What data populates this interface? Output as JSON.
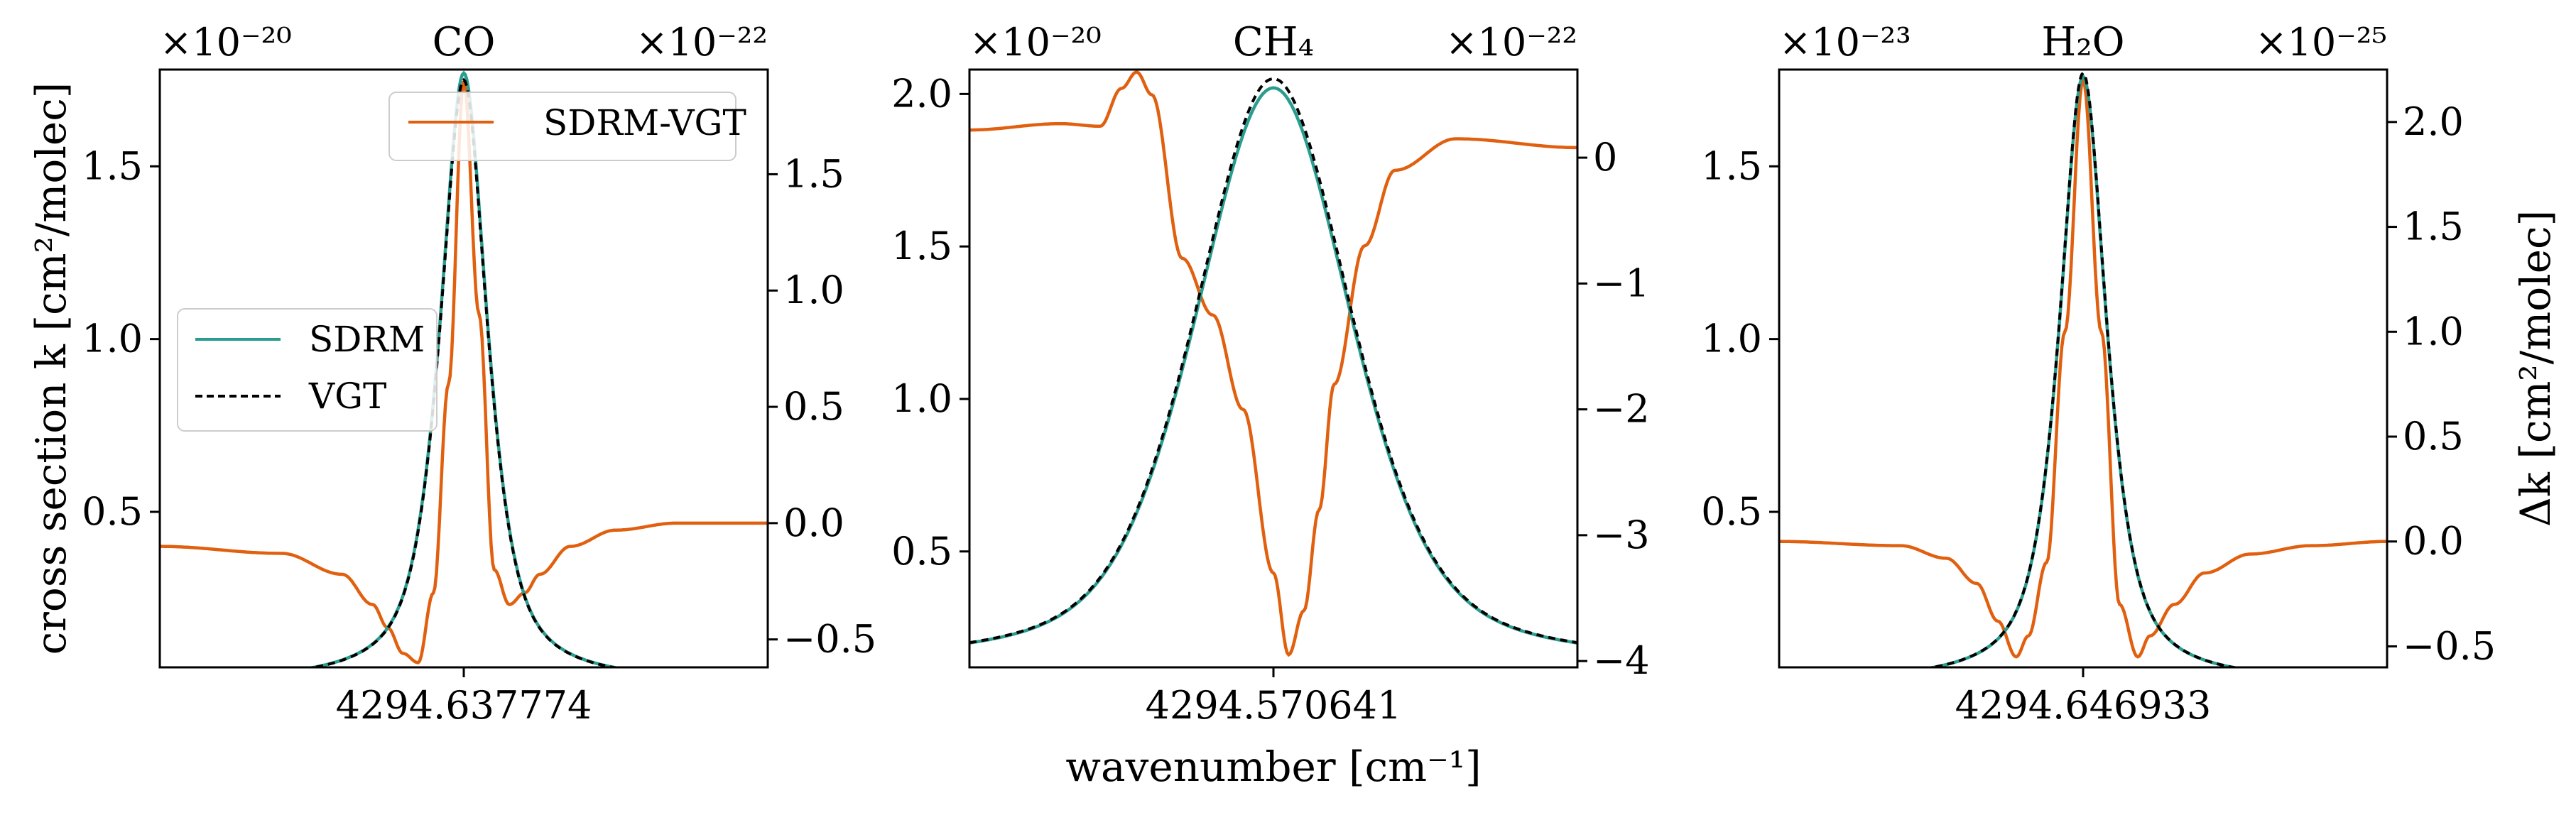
{
  "figure": {
    "xlabel": "wavenumber  [cm⁻¹]",
    "ylabel_left": "cross section k [cm²/molec]",
    "ylabel_right": "Δk [cm²/molec]"
  },
  "colors": {
    "sdrm": "#2a9d8f",
    "vgt": "#000000",
    "diff": "#e0600f"
  },
  "legend": {
    "sdrm": "SDRM",
    "vgt": "VGT",
    "diff": "SDRM-VGT"
  },
  "chart_data": [
    {
      "type": "line",
      "title": "CO",
      "x_tick_label": "4294.637774",
      "left_exponent": "×10⁻²⁰",
      "right_exponent": "×10⁻²²",
      "ylim_left": [
        0.05,
        1.78
      ],
      "yticks_left": [
        0.5,
        1.0,
        1.5
      ],
      "ytick_labels_left": [
        "0.5",
        "1.0",
        "1.5"
      ],
      "ylim_right": [
        -0.62,
        1.95
      ],
      "yticks_right": [
        -0.5,
        0.0,
        0.5,
        1.0,
        1.5
      ],
      "ytick_labels_right": [
        "−0.5",
        "0.0",
        "0.5",
        "1.0",
        "1.5"
      ],
      "profile": {
        "peak": 1.77,
        "base": 0.05,
        "gamma": 0.09
      },
      "series": [
        {
          "name": "SDRM",
          "axis": "left",
          "x": [
            -1.0,
            -0.8,
            -0.6,
            -0.4,
            -0.3,
            -0.2,
            -0.1,
            0.0,
            0.1,
            0.2,
            0.3,
            0.4,
            0.6,
            0.8,
            1.0
          ],
          "values": [
            0.056,
            0.064,
            0.079,
            0.119,
            0.167,
            0.264,
            0.49,
            1.77,
            0.49,
            0.264,
            0.167,
            0.119,
            0.079,
            0.064,
            0.056
          ]
        },
        {
          "name": "VGT",
          "axis": "left",
          "x": [
            -1.0,
            -0.8,
            -0.6,
            -0.4,
            -0.3,
            -0.2,
            -0.1,
            0.0,
            0.1,
            0.2,
            0.3,
            0.4,
            0.6,
            0.8,
            1.0
          ],
          "values": [
            0.056,
            0.064,
            0.079,
            0.119,
            0.167,
            0.264,
            0.49,
            1.75,
            0.49,
            0.264,
            0.167,
            0.119,
            0.079,
            0.064,
            0.056
          ]
        },
        {
          "name": "SDRM-VGT",
          "axis": "right",
          "x": [
            -1.0,
            -0.6,
            -0.4,
            -0.3,
            -0.25,
            -0.2,
            -0.15,
            -0.1,
            -0.05,
            0.0,
            0.05,
            0.1,
            0.15,
            0.2,
            0.25,
            0.35,
            0.5,
            0.7,
            1.0
          ],
          "values": [
            -0.1,
            -0.13,
            -0.22,
            -0.35,
            -0.45,
            -0.56,
            -0.6,
            -0.3,
            0.6,
            1.9,
            0.9,
            -0.2,
            -0.35,
            -0.3,
            -0.22,
            -0.1,
            -0.03,
            0.0,
            0.0
          ]
        }
      ]
    },
    {
      "type": "line",
      "title": "CH₄",
      "x_tick_label": "4294.570641",
      "left_exponent": "×10⁻²⁰",
      "right_exponent": "×10⁻²²",
      "ylim_left": [
        0.12,
        2.08
      ],
      "yticks_left": [
        0.5,
        1.0,
        1.5,
        2.0
      ],
      "ytick_labels_left": [
        "0.5",
        "1.0",
        "1.5",
        "2.0"
      ],
      "ylim_right": [
        -4.05,
        0.7
      ],
      "yticks_right": [
        -4,
        -3,
        -2,
        -1,
        0
      ],
      "ytick_labels_right": [
        "−4",
        "−3",
        "−2",
        "−1",
        "0"
      ],
      "profile": {
        "peak": 2.03,
        "base": 0.12,
        "gamma": 0.3
      },
      "series": [
        {
          "name": "SDRM",
          "axis": "left",
          "x": [
            -1.0,
            -0.8,
            -0.6,
            -0.4,
            -0.2,
            0.0,
            0.2,
            0.4,
            0.6,
            0.8,
            1.0
          ],
          "values": [
            0.14,
            0.23,
            0.37,
            0.8,
            1.55,
            2.02,
            1.55,
            0.8,
            0.37,
            0.23,
            0.14
          ]
        },
        {
          "name": "VGT",
          "axis": "left",
          "x": [
            -1.0,
            -0.8,
            -0.6,
            -0.4,
            -0.2,
            0.0,
            0.2,
            0.4,
            0.6,
            0.8,
            1.0
          ],
          "values": [
            0.14,
            0.23,
            0.37,
            0.8,
            1.56,
            2.05,
            1.56,
            0.8,
            0.37,
            0.23,
            0.14
          ]
        },
        {
          "name": "SDRM-VGT",
          "axis": "right",
          "x": [
            -1.0,
            -0.7,
            -0.57,
            -0.5,
            -0.45,
            -0.4,
            -0.3,
            -0.2,
            -0.1,
            0.0,
            0.05,
            0.1,
            0.15,
            0.2,
            0.3,
            0.4,
            0.6,
            1.0
          ],
          "values": [
            0.22,
            0.27,
            0.25,
            0.55,
            0.68,
            0.5,
            -0.8,
            -1.25,
            -2.0,
            -3.3,
            -3.95,
            -3.6,
            -2.8,
            -1.8,
            -0.7,
            -0.1,
            0.15,
            0.08
          ]
        }
      ]
    },
    {
      "type": "line",
      "title": "H₂O",
      "x_tick_label": "4294.646933",
      "left_exponent": "×10⁻²³",
      "right_exponent": "×10⁻²⁵",
      "ylim_left": [
        0.05,
        1.78
      ],
      "yticks_left": [
        0.5,
        1.0,
        1.5
      ],
      "ytick_labels_left": [
        "0.5",
        "1.0",
        "1.5"
      ],
      "ylim_right": [
        -0.6,
        2.25
      ],
      "yticks_right": [
        -0.5,
        0.0,
        0.5,
        1.0,
        1.5,
        2.0
      ],
      "ytick_labels_right": [
        "−0.5",
        "0.0",
        "0.5",
        "1.0",
        "1.5",
        "2.0"
      ],
      "profile": {
        "peak": 1.77,
        "base": 0.05,
        "gamma": 0.09
      },
      "series": [
        {
          "name": "SDRM",
          "axis": "left",
          "x": [
            -1.0,
            -0.8,
            -0.6,
            -0.4,
            -0.3,
            -0.2,
            -0.1,
            0.0,
            0.1,
            0.2,
            0.3,
            0.4,
            0.6,
            0.8,
            1.0
          ],
          "values": [
            0.056,
            0.064,
            0.079,
            0.119,
            0.167,
            0.264,
            0.49,
            1.76,
            0.49,
            0.264,
            0.167,
            0.119,
            0.079,
            0.064,
            0.056
          ]
        },
        {
          "name": "VGT",
          "axis": "left",
          "x": [
            -1.0,
            -0.8,
            -0.6,
            -0.4,
            -0.3,
            -0.2,
            -0.1,
            0.0,
            0.1,
            0.2,
            0.3,
            0.4,
            0.6,
            0.8,
            1.0
          ],
          "values": [
            0.056,
            0.064,
            0.079,
            0.119,
            0.167,
            0.264,
            0.49,
            1.77,
            0.49,
            0.264,
            0.167,
            0.119,
            0.079,
            0.064,
            0.056
          ]
        },
        {
          "name": "SDRM-VGT",
          "axis": "right",
          "x": [
            -1.0,
            -0.6,
            -0.45,
            -0.35,
            -0.28,
            -0.22,
            -0.18,
            -0.12,
            -0.06,
            0.0,
            0.06,
            0.12,
            0.18,
            0.22,
            0.3,
            0.4,
            0.55,
            0.75,
            1.0
          ],
          "values": [
            0.0,
            -0.02,
            -0.08,
            -0.2,
            -0.38,
            -0.55,
            -0.45,
            -0.1,
            1.0,
            2.2,
            1.0,
            -0.3,
            -0.55,
            -0.45,
            -0.3,
            -0.15,
            -0.06,
            -0.02,
            0.0
          ]
        }
      ]
    }
  ]
}
